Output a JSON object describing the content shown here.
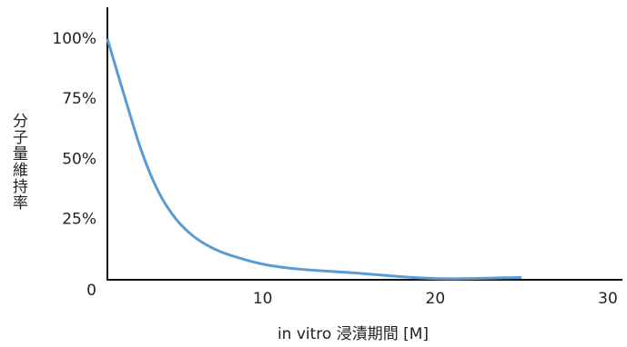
{
  "chart_data": {
    "type": "line",
    "x_label": "in vitro 浸漬期間 [M]",
    "y_label": "分子量維持率",
    "x": [
      1,
      2,
      3,
      4,
      5,
      6,
      7,
      8,
      10,
      12,
      15,
      20,
      25
    ],
    "series": [
      {
        "color": "#5b9bd5",
        "values": [
          100,
          76,
          53,
          36,
          25,
          18,
          13.5,
          10.5,
          6.5,
          4.5,
          3,
          0.5,
          1
        ]
      }
    ],
    "xlim": [
      1,
      30
    ],
    "xticks": [
      10,
      20,
      30
    ],
    "ylim": [
      0,
      112
    ],
    "yticks": [
      0,
      {
        "value": 25,
        "label": "25%"
      },
      {
        "value": 50,
        "label": "50%"
      },
      {
        "value": 75,
        "label": "75%"
      },
      {
        "value": 100,
        "label": "100%"
      }
    ]
  }
}
